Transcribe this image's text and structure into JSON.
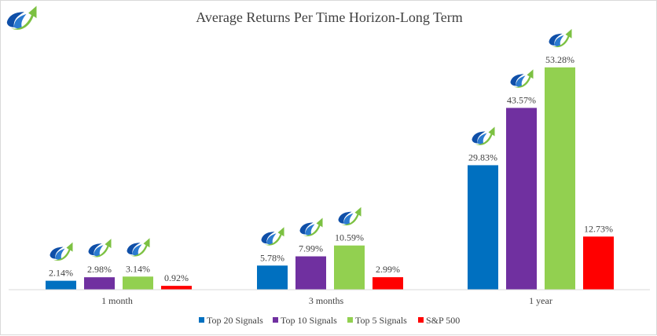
{
  "chart_data": {
    "type": "bar",
    "title": "Average Returns Per Time Horizon-Long Term",
    "categories": [
      "1 month",
      "3 months",
      "1 year"
    ],
    "series": [
      {
        "name": "Top 20 Signals",
        "color": "#0070C0",
        "values": [
          2.14,
          5.78,
          29.83
        ],
        "labels": [
          "2.14%",
          "5.78%",
          "29.83%"
        ]
      },
      {
        "name": "Top 10 Signals",
        "color": "#7030A0",
        "values": [
          2.98,
          7.99,
          43.57
        ],
        "labels": [
          "2.98%",
          "7.99%",
          "43.57%"
        ]
      },
      {
        "name": "Top 5 Signals",
        "color": "#92D050",
        "values": [
          3.14,
          10.59,
          53.28
        ],
        "labels": [
          "3.14%",
          "10.59%",
          "53.28%"
        ]
      },
      {
        "name": "S&P 500",
        "color": "#FF0000",
        "values": [
          0.92,
          2.99,
          12.73
        ],
        "labels": [
          "0.92%",
          "2.99%",
          "12.73%"
        ]
      }
    ],
    "ylim": [
      0,
      60
    ],
    "grid": false,
    "legend": "bottom",
    "logo_marker_series": [
      "Top 20 Signals",
      "Top 10 Signals",
      "Top 5 Signals"
    ],
    "logo": "swoosh-arrow-logo"
  }
}
